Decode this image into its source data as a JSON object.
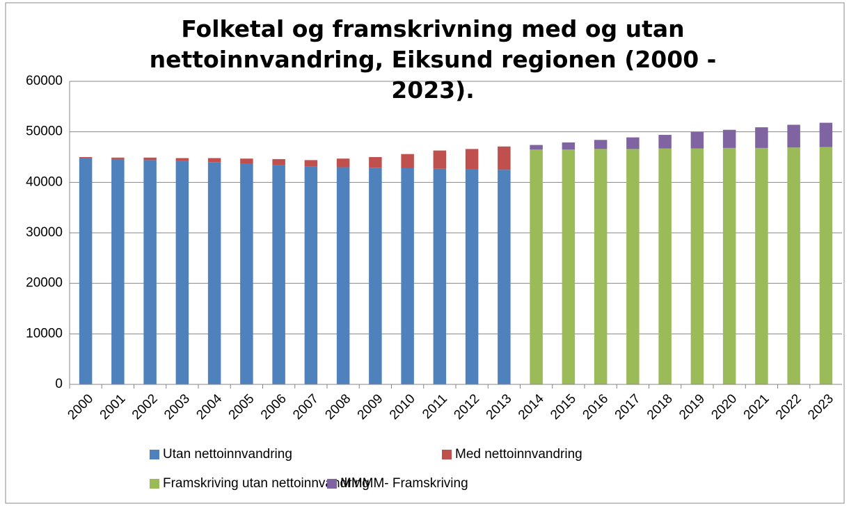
{
  "chart_data": {
    "type": "stacked_bar",
    "title": "Folketal og framskrivning med og utan nettoinnvandring, Eiksund regionen (2000 - 2023).",
    "categories": [
      "2000",
      "2001",
      "2002",
      "2003",
      "2004",
      "2005",
      "2006",
      "2007",
      "2008",
      "2009",
      "2010",
      "2011",
      "2012",
      "2013",
      "2014",
      "2015",
      "2016",
      "2017",
      "2018",
      "2019",
      "2020",
      "2021",
      "2022",
      "2023"
    ],
    "series": [
      {
        "name": "Utan nettoinnvandring",
        "color": "#4f81bd",
        "values": [
          44800,
          44600,
          44400,
          44200,
          44000,
          43700,
          43400,
          43100,
          43000,
          42900,
          42800,
          42700,
          42600,
          42500,
          null,
          null,
          null,
          null,
          null,
          null,
          null,
          null,
          null,
          null
        ]
      },
      {
        "name": "Med nettoinnvandring",
        "color": "#c0504d",
        "values": [
          200,
          300,
          500,
          600,
          800,
          1000,
          1200,
          1300,
          1700,
          2100,
          2800,
          3600,
          4000,
          4600,
          null,
          null,
          null,
          null,
          null,
          null,
          null,
          null,
          null,
          null
        ]
      },
      {
        "name": "Framskriving utan nettoinnvandring",
        "color": "#9bbb59",
        "values": [
          null,
          null,
          null,
          null,
          null,
          null,
          null,
          null,
          null,
          null,
          null,
          null,
          null,
          null,
          46500,
          46500,
          46600,
          46600,
          46700,
          46700,
          46800,
          46800,
          46900,
          47000
        ]
      },
      {
        "name": "MMMM- Framskriving",
        "color": "#8064a2",
        "values": [
          null,
          null,
          null,
          null,
          null,
          null,
          null,
          null,
          null,
          null,
          null,
          null,
          null,
          null,
          900,
          1400,
          1800,
          2300,
          2700,
          3300,
          3600,
          4100,
          4500,
          4800
        ]
      }
    ],
    "ylim": [
      0,
      60000
    ],
    "yticks": [
      0,
      10000,
      20000,
      30000,
      40000,
      50000,
      60000
    ],
    "grid": true
  }
}
